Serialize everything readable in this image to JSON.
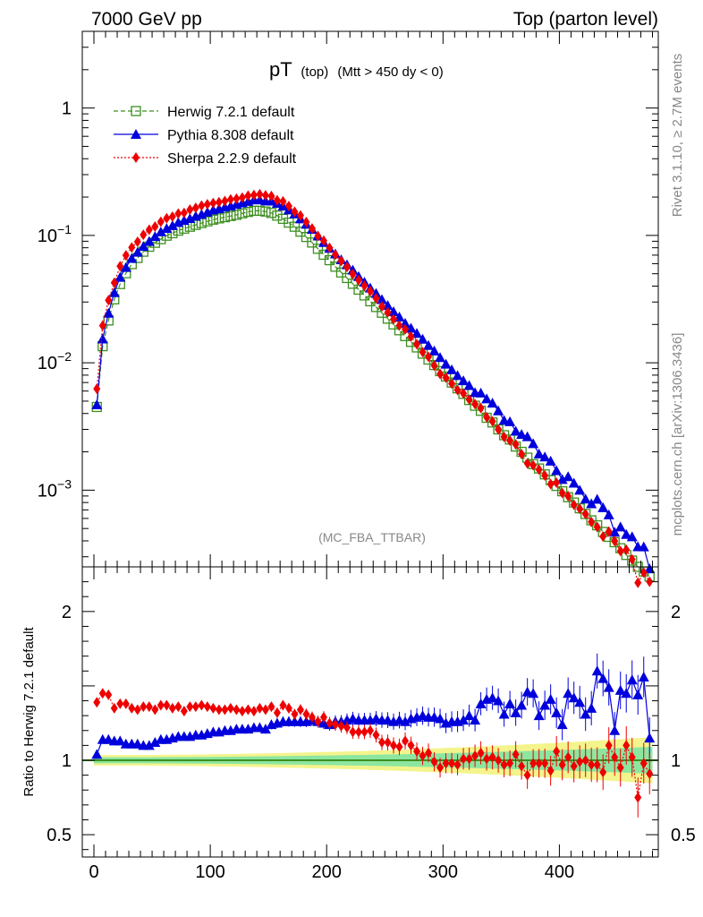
{
  "header": {
    "left": "7000 GeV pp",
    "right": "Top (parton level)"
  },
  "side_labels": {
    "rivet": "Rivet 3.1.10, ≥ 2.7M events",
    "mcplots": "mcplots.cern.ch [arXiv:1306.3436]"
  },
  "chart_data": {
    "type": "line",
    "title_main": "pT",
    "title_sub": "(top)",
    "title_cut": "(Mtt > 450 dy < 0)",
    "watermark": "(MC_FBA_TTBAR)",
    "ylabel_ratio": "Ratio to Herwig 7.2.1 default",
    "xlim": [
      -10,
      485
    ],
    "ylim_main": [
      0.00025,
      4
    ],
    "ylim_ratio": [
      0.35,
      2.3
    ],
    "x_ticks": [
      0,
      100,
      200,
      300,
      400
    ],
    "x_tick_labels": [
      "0",
      "100",
      "200",
      "300",
      "400"
    ],
    "main_y_ticks": [
      1,
      0.1,
      0.01,
      0.001
    ],
    "main_y_labels": [
      {
        "base": "1",
        "exp": ""
      },
      {
        "base": "10",
        "exp": "−1"
      },
      {
        "base": "10",
        "exp": "−2"
      },
      {
        "base": "10",
        "exp": "−3"
      }
    ],
    "ratio_y_ticks": [
      2,
      1,
      0.5
    ],
    "ratio_y_labels": [
      "2",
      "1",
      "0.5"
    ],
    "colors": {
      "herwig": "#3d8f1f",
      "pythia": "#0000dd",
      "sherpa": "#ee0000",
      "band_outer": "#f4f48c",
      "band_inner": "#8ce6a0"
    },
    "legend": [
      {
        "name": "Herwig 7.2.1 default",
        "color": "#3d8f1f",
        "marker": "open-square",
        "line": "dashed"
      },
      {
        "name": "Pythia 8.308 default",
        "color": "#0000dd",
        "marker": "triangle",
        "line": "solid"
      },
      {
        "name": "Sherpa 2.2.9 default",
        "color": "#ee0000",
        "marker": "diamond",
        "line": "dotted"
      }
    ],
    "x": [
      2.5,
      7.5,
      12.5,
      17.5,
      22.5,
      27.5,
      32.5,
      37.5,
      42.5,
      47.5,
      52.5,
      57.5,
      62.5,
      67.5,
      72.5,
      77.5,
      82.5,
      87.5,
      92.5,
      97.5,
      102.5,
      107.5,
      112.5,
      117.5,
      122.5,
      127.5,
      132.5,
      137.5,
      142.5,
      147.5,
      152.5,
      157.5,
      162.5,
      167.5,
      172.5,
      177.5,
      182.5,
      187.5,
      192.5,
      197.5,
      202.5,
      207.5,
      212.5,
      217.5,
      222.5,
      227.5,
      232.5,
      237.5,
      242.5,
      247.5,
      252.5,
      257.5,
      262.5,
      267.5,
      272.5,
      277.5,
      282.5,
      287.5,
      292.5,
      297.5,
      302.5,
      307.5,
      312.5,
      317.5,
      322.5,
      327.5,
      332.5,
      337.5,
      342.5,
      347.5,
      352.5,
      357.5,
      362.5,
      367.5,
      372.5,
      377.5,
      382.5,
      387.5,
      392.5,
      397.5,
      402.5,
      407.5,
      412.5,
      417.5,
      422.5,
      427.5,
      432.5,
      437.5,
      442.5,
      447.5,
      452.5,
      457.5,
      462.5,
      467.5,
      472.5,
      477.5
    ],
    "series": [
      {
        "name": "Herwig 7.2.1 default",
        "values": [
          0.0045,
          0.0135,
          0.0215,
          0.0315,
          0.0415,
          0.0505,
          0.0595,
          0.0665,
          0.0745,
          0.0815,
          0.0875,
          0.0935,
          0.0995,
          0.104,
          0.109,
          0.113,
          0.117,
          0.121,
          0.125,
          0.129,
          0.133,
          0.136,
          0.139,
          0.142,
          0.145,
          0.149,
          0.153,
          0.156,
          0.156,
          0.154,
          0.15,
          0.143,
          0.135,
          0.126,
          0.117,
          0.107,
          0.0972,
          0.0879,
          0.0785,
          0.0705,
          0.0639,
          0.0568,
          0.0512,
          0.0463,
          0.0417,
          0.0375,
          0.0338,
          0.0304,
          0.0274,
          0.0247,
          0.0222,
          0.02,
          0.018,
          0.0162,
          0.0146,
          0.0132,
          0.0118,
          0.0106,
          0.0096,
          0.0086,
          0.0078,
          0.007,
          0.0063,
          0.0057,
          0.0051,
          0.0046,
          0.0042,
          0.0037,
          0.0034,
          0.003,
          0.0027,
          0.0025,
          0.0022,
          0.002,
          0.0018,
          0.0016,
          0.00148,
          0.00133,
          0.0012,
          0.00108,
          0.00098,
          0.00088,
          0.0008,
          0.00072,
          0.00065,
          0.00058,
          0.00053,
          0.00047,
          0.00043,
          0.00039,
          0.00035,
          0.00031,
          0.00028,
          0.00025,
          0.00023,
          0.00021
        ]
      },
      {
        "name": "Pythia 8.308 default",
        "ratio": [
          1.04,
          1.14,
          1.14,
          1.13,
          1.13,
          1.11,
          1.11,
          1.11,
          1.1,
          1.1,
          1.12,
          1.14,
          1.14,
          1.15,
          1.16,
          1.16,
          1.16,
          1.17,
          1.17,
          1.18,
          1.19,
          1.19,
          1.2,
          1.2,
          1.21,
          1.21,
          1.21,
          1.22,
          1.22,
          1.21,
          1.24,
          1.25,
          1.26,
          1.26,
          1.26,
          1.26,
          1.26,
          1.27,
          1.26,
          1.25,
          1.24,
          1.26,
          1.26,
          1.27,
          1.28,
          1.27,
          1.27,
          1.27,
          1.28,
          1.27,
          1.27,
          1.26,
          1.27,
          1.26,
          1.28,
          1.29,
          1.3,
          1.29,
          1.29,
          1.28,
          1.25,
          1.26,
          1.26,
          1.27,
          1.3,
          1.27,
          1.38,
          1.41,
          1.42,
          1.4,
          1.31,
          1.38,
          1.32,
          1.37,
          1.46,
          1.45,
          1.3,
          1.37,
          1.41,
          1.32,
          1.24,
          1.45,
          1.42,
          1.39,
          1.31,
          1.35,
          1.6,
          1.55,
          1.49,
          1.2,
          1.47,
          1.45,
          1.54,
          1.44,
          1.56,
          1.15
        ]
      },
      {
        "name": "Sherpa 2.2.9 default",
        "ratio": [
          1.39,
          1.45,
          1.44,
          1.35,
          1.38,
          1.38,
          1.35,
          1.34,
          1.36,
          1.36,
          1.34,
          1.37,
          1.37,
          1.35,
          1.36,
          1.33,
          1.36,
          1.36,
          1.37,
          1.36,
          1.35,
          1.34,
          1.34,
          1.35,
          1.34,
          1.33,
          1.34,
          1.33,
          1.35,
          1.34,
          1.36,
          1.32,
          1.37,
          1.35,
          1.31,
          1.34,
          1.31,
          1.29,
          1.26,
          1.29,
          1.25,
          1.24,
          1.23,
          1.22,
          1.19,
          1.19,
          1.19,
          1.2,
          1.17,
          1.12,
          1.12,
          1.1,
          1.09,
          1.13,
          1.1,
          1.06,
          1.03,
          1.05,
          0.99,
          0.95,
          0.98,
          0.98,
          0.97,
          1.01,
          1.01,
          1.03,
          1.05,
          1.01,
          1.02,
          1.0,
          0.97,
          0.98,
          1.04,
          0.96,
          0.9,
          0.98,
          0.98,
          0.98,
          0.93,
          1.06,
          0.97,
          1.02,
          0.96,
          0.99,
          1.0,
          0.97,
          0.97,
          0.92,
          1.1,
          1.02,
          0.95,
          1.1,
          1.02,
          0.75,
          0.98,
          0.91
        ]
      }
    ]
  }
}
